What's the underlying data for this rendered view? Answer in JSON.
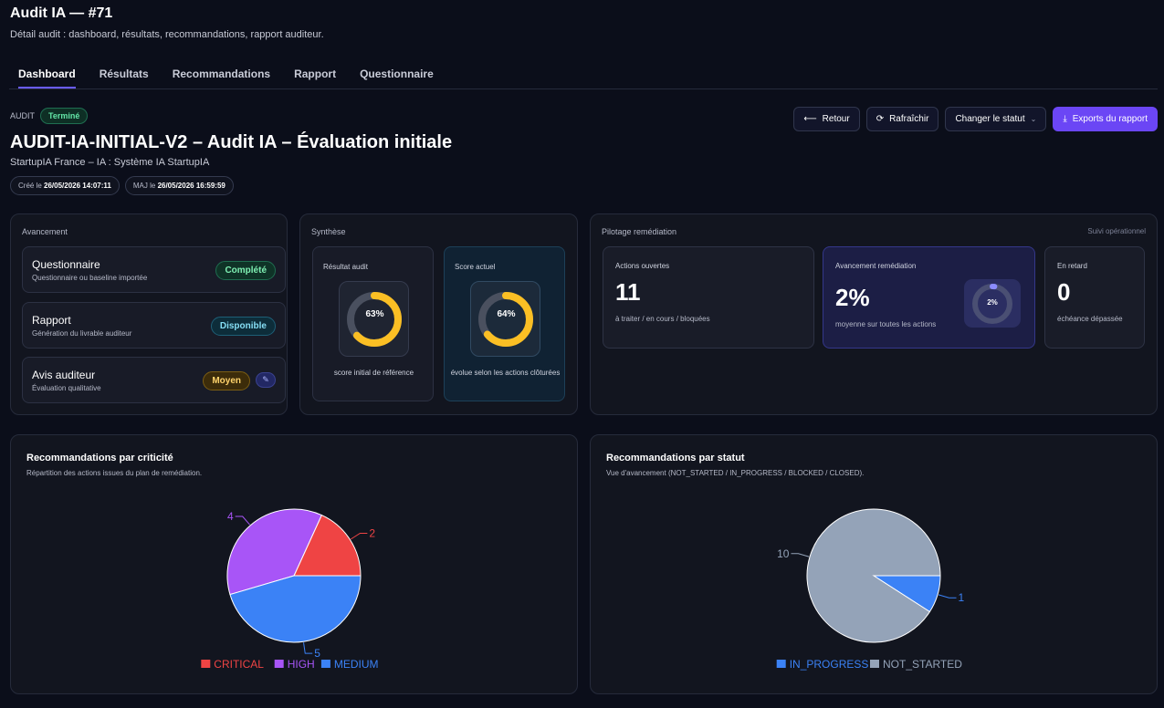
{
  "header": {
    "title": "Audit IA — #71",
    "subtitle": "Détail audit : dashboard, résultats, recommandations, rapport auditeur."
  },
  "tabs": [
    "Dashboard",
    "Résultats",
    "Recommandations",
    "Rapport",
    "Questionnaire"
  ],
  "active_tab": "Dashboard",
  "audit": {
    "label": "AUDIT",
    "status": "Terminé",
    "title": "AUDIT-IA-INITIAL-V2 – Audit IA – Évaluation initiale",
    "org": "StartupIA France – IA : Système IA StartupIA",
    "created_prefix": "Créé le",
    "created": "26/05/2026 14:07:11",
    "updated_prefix": "MAJ le",
    "updated": "26/05/2026 16:59:59"
  },
  "actions": {
    "back": "Retour",
    "refresh": "Rafraîchir",
    "change_status": "Changer le statut",
    "export": "Exports du rapport"
  },
  "avancement": {
    "label": "Avancement",
    "items": [
      {
        "title": "Questionnaire",
        "sub": "Questionnaire ou baseline importée",
        "badge": "Complété"
      },
      {
        "title": "Rapport",
        "sub": "Génération du livrable auditeur",
        "badge": "Disponible"
      },
      {
        "title": "Avis auditeur",
        "sub": "Évaluation qualitative",
        "badge": "Moyen"
      }
    ]
  },
  "synthese": {
    "label": "Synthèse",
    "result": {
      "head": "Résultat audit",
      "value": 0.63,
      "value_label": "63%",
      "foot": "score initial de référence"
    },
    "current": {
      "head": "Score actuel",
      "value": 0.64,
      "value_label": "64%",
      "foot": "évolue selon les actions clôturées"
    }
  },
  "pilotage": {
    "label": "Pilotage remédiation",
    "label_right": "Suivi opérationnel",
    "open": {
      "head": "Actions ouvertes",
      "value": "11",
      "sub": "à traiter / en cours / bloquées"
    },
    "progress": {
      "head": "Avancement remédiation",
      "value": "2%",
      "fraction": 0.02,
      "sub": "moyenne sur toutes les actions",
      "donut_label": "2%"
    },
    "late": {
      "head": "En retard",
      "value": "0",
      "sub": "échéance dépassée"
    }
  },
  "colors": {
    "accent": "#6b46f5",
    "gauge": "#fbbf24",
    "critical": "#ef4444",
    "high": "#a855f7",
    "medium": "#3b82f6",
    "in_progress": "#3b82f6",
    "not_started": "#94a3b8"
  },
  "chart_criticity": {
    "title": "Recommandations par criticité",
    "subtitle": "Répartition des actions issues du plan de remédiation."
  },
  "chart_status": {
    "title": "Recommandations par statut",
    "subtitle": "Vue d'avancement (NOT_STARTED / IN_PROGRESS / BLOCKED / CLOSED)."
  },
  "chart_data": [
    {
      "type": "pie",
      "title": "Recommandations par criticité",
      "categories": [
        "CRITICAL",
        "HIGH",
        "MEDIUM"
      ],
      "values": [
        2,
        4,
        5
      ],
      "legend": "bottom"
    },
    {
      "type": "pie",
      "title": "Recommandations par statut",
      "categories": [
        "IN_PROGRESS",
        "NOT_STARTED"
      ],
      "values": [
        1,
        10
      ],
      "legend": "bottom"
    }
  ]
}
